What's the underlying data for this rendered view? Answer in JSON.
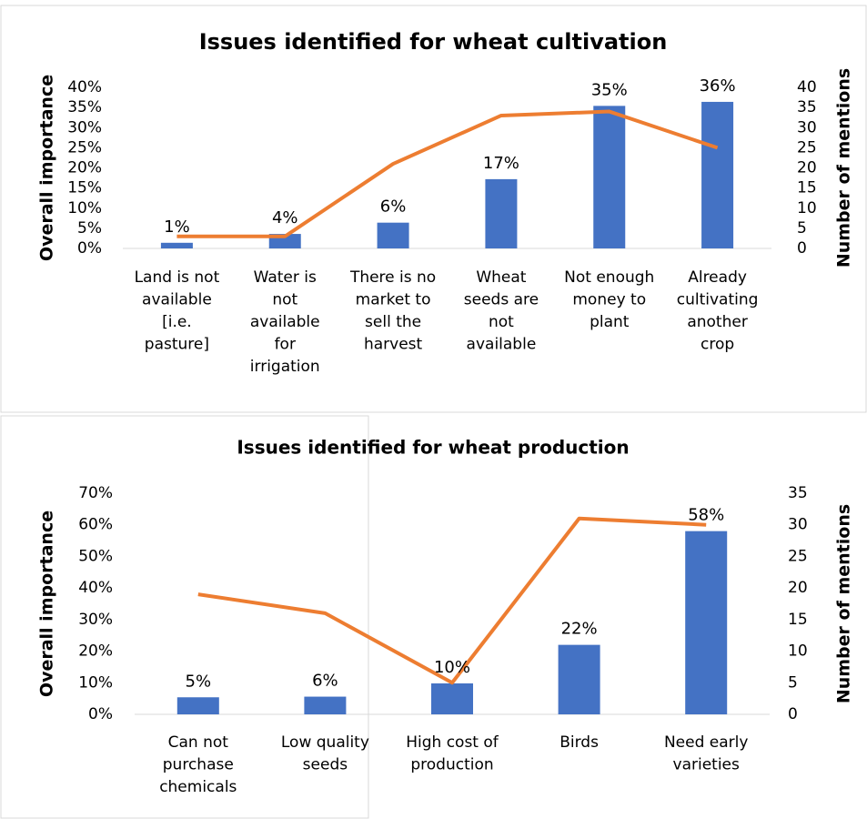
{
  "chart_data": [
    {
      "type": "bar",
      "title": "Issues identified for wheat cultivation",
      "y_label": "Overall importance",
      "y2_label": "Number of mentions",
      "categories": [
        "Land is not available [i.e. pasture]",
        "Water is not available for irrigation",
        "There is no market to sell the harvest",
        "Wheat seeds are not available",
        "Not enough money to plant",
        "Already cultivating another crop"
      ],
      "series": [
        {
          "type": "bar",
          "color": "#4472c4",
          "values": [
            1.4,
            3.6,
            6.4,
            17.2,
            35.4,
            36.4
          ],
          "value_labels": [
            "1%",
            "4%",
            "6%",
            "17%",
            "35%",
            "36%"
          ]
        },
        {
          "type": "line",
          "color": "#ed7d31",
          "axis": "y2",
          "values": [
            3,
            3,
            21,
            33,
            34,
            25
          ]
        }
      ],
      "ylim": [
        0,
        40
      ],
      "yticks": [
        {
          "value": 0,
          "label": "0%"
        },
        {
          "value": 5,
          "label": "5%"
        },
        {
          "value": 10,
          "label": "10%"
        },
        {
          "value": 15,
          "label": "15%"
        },
        {
          "value": 20,
          "label": "20%"
        },
        {
          "value": 25,
          "label": "25%"
        },
        {
          "value": 30,
          "label": "30%"
        },
        {
          "value": 35,
          "label": "35%"
        },
        {
          "value": 40,
          "label": "40%"
        }
      ],
      "y2lim": [
        0,
        40
      ],
      "y2ticks": [
        0,
        5,
        10,
        15,
        20,
        25,
        30,
        35,
        40
      ],
      "grid": false
    },
    {
      "type": "bar",
      "title": "Issues identified for wheat production",
      "y_label": "Overall importance",
      "y2_label": "Number of mentions",
      "categories": [
        "Can not purchase chemicals",
        "Low quality seeds",
        "High cost of production",
        "Birds",
        "Need early varieties"
      ],
      "series": [
        {
          "type": "bar",
          "color": "#4472c4",
          "values": [
            5.4,
            5.6,
            9.8,
            22,
            58
          ],
          "value_labels": [
            "5%",
            "6%",
            "10%",
            "22%",
            "58%"
          ]
        },
        {
          "type": "line",
          "color": "#ed7d31",
          "axis": "y2",
          "values": [
            19,
            16,
            5,
            31,
            30
          ]
        }
      ],
      "ylim": [
        0,
        70
      ],
      "yticks": [
        {
          "value": 0,
          "label": "0%"
        },
        {
          "value": 10,
          "label": "10%"
        },
        {
          "value": 20,
          "label": "20%"
        },
        {
          "value": 30,
          "label": "30%"
        },
        {
          "value": 40,
          "label": "40%"
        },
        {
          "value": 50,
          "label": "50%"
        },
        {
          "value": 60,
          "label": "60%"
        },
        {
          "value": 70,
          "label": "70%"
        }
      ],
      "y2lim": [
        0,
        35
      ],
      "y2ticks": [
        0,
        5,
        10,
        15,
        20,
        25,
        30,
        35
      ],
      "grid": false
    }
  ]
}
